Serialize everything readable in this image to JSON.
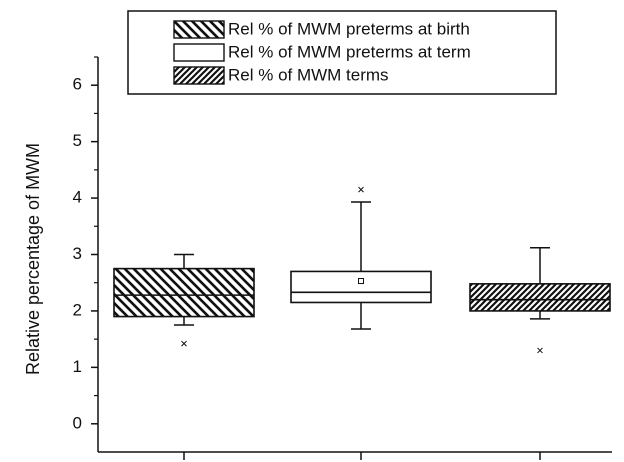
{
  "chart_data": {
    "type": "box",
    "ylabel": "Relative percentage of MWM",
    "xlabel": "",
    "ylim": [
      -0.5,
      6.5
    ],
    "y_ticks": [
      0,
      1,
      2,
      3,
      4,
      5,
      6
    ],
    "grid": false,
    "legend_position": "top-right",
    "series": [
      {
        "name": "Rel % of MWM preterms at birth",
        "fill": "back-diagonal-hatch",
        "whisker_low": 1.75,
        "q1": 1.9,
        "median": 2.28,
        "q3": 2.75,
        "whisker_high": 3.0,
        "mean": null,
        "outliers": [
          1.42
        ]
      },
      {
        "name": "Rel % of MWM preterms at term",
        "fill": "none",
        "whisker_low": 1.68,
        "q1": 2.15,
        "median": 2.33,
        "q3": 2.7,
        "whisker_high": 3.93,
        "mean": 2.53,
        "outliers": [
          4.15
        ]
      },
      {
        "name": "Rel % of MWM terms",
        "fill": "forward-diagonal-hatch",
        "whisker_low": 1.86,
        "q1": 2.0,
        "median": 2.2,
        "q3": 2.48,
        "whisker_high": 3.12,
        "mean": null,
        "outliers": [
          1.3
        ]
      }
    ]
  }
}
